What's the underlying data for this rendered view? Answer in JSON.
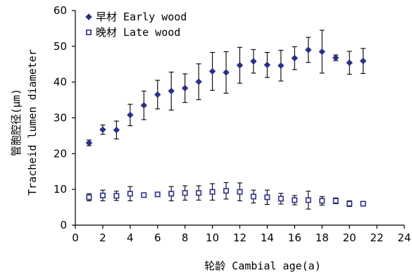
{
  "chart_data": {
    "type": "scatter",
    "xlabel": "轮龄 Cambial age(a)",
    "ylabel_lines": [
      "管胞腔径(μm)",
      "Tracheid lumen diameter"
    ],
    "xlim": [
      0,
      24
    ],
    "ylim": [
      0,
      60
    ],
    "xticks": [
      0,
      2,
      4,
      6,
      8,
      10,
      12,
      14,
      16,
      18,
      20,
      22,
      24
    ],
    "yticks": [
      0,
      10,
      20,
      30,
      40,
      50,
      60
    ],
    "grid": false,
    "legend_position": "top-left",
    "series": [
      {
        "name": "早材 Early wood",
        "marker": "diamond-filled",
        "color": "#2b2f8a",
        "x": [
          1,
          2,
          3,
          4,
          5,
          6,
          7,
          8,
          9,
          10,
          11,
          12,
          13,
          14,
          15,
          16,
          17,
          18,
          19,
          20,
          21
        ],
        "y": [
          23,
          26.7,
          26.6,
          30.8,
          33.5,
          36.5,
          37.5,
          38.3,
          40.1,
          43.0,
          42.7,
          44.7,
          45.8,
          44.8,
          44.6,
          46.7,
          49.0,
          48.5,
          46.8,
          45.4,
          45.9
        ],
        "err": [
          0.8,
          1.3,
          2.5,
          3.0,
          4.0,
          4.0,
          5.3,
          4.0,
          5.0,
          5.3,
          5.8,
          5.0,
          3.3,
          3.5,
          4.3,
          3.2,
          3.5,
          6.0,
          0.8,
          3.2,
          3.5
        ]
      },
      {
        "name": "晚材 Late wood",
        "marker": "square-open",
        "color": "#2b2f8a",
        "x": [
          1,
          2,
          3,
          4,
          5,
          6,
          7,
          8,
          9,
          10,
          11,
          12,
          13,
          14,
          15,
          16,
          17,
          18,
          19,
          20,
          21
        ],
        "y": [
          7.8,
          8.3,
          8.2,
          8.8,
          8.4,
          8.6,
          8.8,
          9.0,
          9.0,
          9.3,
          9.6,
          9.3,
          8.0,
          7.8,
          7.4,
          7.0,
          7.0,
          6.8,
          6.8,
          6.0,
          6.0
        ],
        "err": [
          1.0,
          1.5,
          1.3,
          2.0,
          0.5,
          0.5,
          2.0,
          2.0,
          2.0,
          2.3,
          2.3,
          2.5,
          1.8,
          2.0,
          1.5,
          1.3,
          2.5,
          1.2,
          0.8,
          0.8,
          0.5
        ]
      }
    ]
  }
}
